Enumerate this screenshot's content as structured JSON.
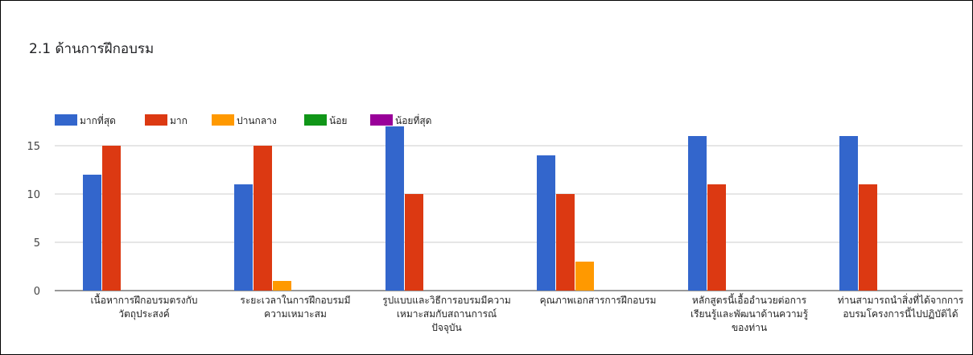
{
  "chart_data": {
    "type": "bar",
    "title": "2.1 ด้านการฝึกอบรม",
    "xlabel": "",
    "ylabel": "",
    "ylim": [
      0,
      17
    ],
    "yticks": [
      0,
      5,
      10,
      15
    ],
    "grid": true,
    "legend_position": "top-left",
    "categories": [
      [
        "เนื้อหาการฝึกอบรมตรงกับ",
        "วัตถุประสงค์"
      ],
      [
        "ระยะเวลาในการฝึกอบรมมี",
        "ความเหมาะสม"
      ],
      [
        "รูปแบบและวิธีการอบรมมีความ",
        "เหมาะสมกับสถานการณ์",
        "ปัจจุบัน"
      ],
      [
        "คุณภาพเอกสารการฝึกอบรม"
      ],
      [
        "หลักสูตรนี้เอื้ออำนวยต่อการ",
        "เรียนรู้และพัฒนาด้านความรู้",
        "ของท่าน"
      ],
      [
        "ท่านสามารถนำสิ่งที่ได้จากการ",
        "อบรมโครงการนี้ไปปฏิบัติได้"
      ]
    ],
    "series": [
      {
        "name": "มากที่สุด",
        "color": "#3366cc",
        "values": [
          12,
          11,
          17,
          14,
          16,
          16
        ]
      },
      {
        "name": "มาก",
        "color": "#dc3912",
        "values": [
          15,
          15,
          10,
          10,
          11,
          11
        ]
      },
      {
        "name": "ปานกลาง",
        "color": "#ff9900",
        "values": [
          0,
          1,
          0,
          3,
          0,
          0
        ]
      },
      {
        "name": "น้อย",
        "color": "#109618",
        "values": [
          0,
          0,
          0,
          0,
          0,
          0
        ]
      },
      {
        "name": "น้อยที่สุด",
        "color": "#990099",
        "values": [
          0,
          0,
          0,
          0,
          0,
          0
        ]
      }
    ]
  }
}
